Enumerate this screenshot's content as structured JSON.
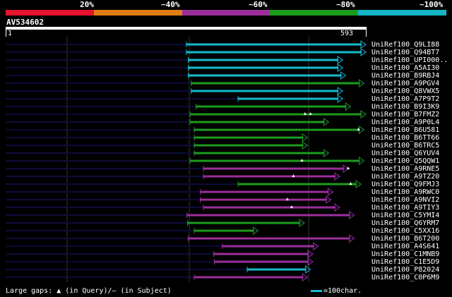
{
  "legend": {
    "segments": [
      {
        "label": "",
        "color": "#e6142d"
      },
      {
        "label": "20%",
        "color": "#e07d14"
      },
      {
        "label": "~40%",
        "color": "#9b2e9b"
      },
      {
        "label": "~60%",
        "color": "#1c9c1c"
      },
      {
        "label": "~80%",
        "color": "#14b4c4"
      },
      {
        "label": "~100%",
        "color": ""
      }
    ]
  },
  "query": {
    "id": "AV534602",
    "start_label": "1",
    "end_label": "593",
    "length": 593
  },
  "hits": [
    {
      "label": "UniRef100_Q9LI88",
      "color": "#14bccc",
      "start": 298,
      "end": 593,
      "gaps": []
    },
    {
      "label": "UniRef100_Q94BT7",
      "color": "#14bccc",
      "start": 298,
      "end": 593,
      "gaps": []
    },
    {
      "label": "UniRef100_UPI000..",
      "color": "#14bccc",
      "start": 301,
      "end": 555,
      "gaps": []
    },
    {
      "label": "UniRef100_A5AI30",
      "color": "#14bccc",
      "start": 301,
      "end": 555,
      "gaps": []
    },
    {
      "label": "UniRef100_B9RBJ4",
      "color": "#14bccc",
      "start": 301,
      "end": 560,
      "gaps": []
    },
    {
      "label": "UniRef100_A9PGV4",
      "color": "#1c9c1c",
      "start": 306,
      "end": 590,
      "gaps": []
    },
    {
      "label": "UniRef100_Q8VWX5",
      "color": "#14bccc",
      "start": 306,
      "end": 555,
      "gaps": []
    },
    {
      "label": "UniRef100_A7P9T2",
      "color": "#14bccc",
      "start": 383,
      "end": 555,
      "gaps": []
    },
    {
      "label": "UniRef100_B9I3K9",
      "color": "#1c9c1c",
      "start": 314,
      "end": 568,
      "gaps": []
    },
    {
      "label": "UniRef100_B7FMZ2",
      "color": "#1c9c1c",
      "start": 304,
      "end": 593,
      "gaps": [
        493,
        502
      ]
    },
    {
      "label": "UniRef100_A9P0L4",
      "color": "#1c9c1c",
      "start": 304,
      "end": 532,
      "gaps": []
    },
    {
      "label": "UniRef100_B6U581",
      "color": "#1c9c1c",
      "start": 311,
      "end": 590,
      "gaps": [
        581
      ]
    },
    {
      "label": "UniRef100_B6TT66",
      "color": "#1c9c1c",
      "start": 311,
      "end": 497,
      "gaps": []
    },
    {
      "label": "UniRef100_B6TRC5",
      "color": "#1c9c1c",
      "start": 311,
      "end": 497,
      "gaps": []
    },
    {
      "label": "UniRef100_Q6YUV4",
      "color": "#1c9c1c",
      "start": 311,
      "end": 532,
      "gaps": []
    },
    {
      "label": "UniRef100_Q5QQW1",
      "color": "#1c9c1c",
      "start": 304,
      "end": 590,
      "gaps": [
        488
      ]
    },
    {
      "label": "UniRef100_A9RNE5",
      "color": "#9b2e9b",
      "start": 326,
      "end": 564,
      "gaps": [
        564
      ]
    },
    {
      "label": "UniRef100_A9TZ20",
      "color": "#9b2e9b",
      "start": 326,
      "end": 550,
      "gaps": [
        474
      ]
    },
    {
      "label": "UniRef100_Q9FMJ3",
      "color": "#1c9c1c",
      "start": 383,
      "end": 585,
      "gaps": [
        568
      ]
    },
    {
      "label": "UniRef100_A9RWC0",
      "color": "#9b2e9b",
      "start": 321,
      "end": 539,
      "gaps": []
    },
    {
      "label": "UniRef100_A9NVI2",
      "color": "#9b2e9b",
      "start": 321,
      "end": 536,
      "gaps": [
        464
      ]
    },
    {
      "label": "UniRef100_A9TIY3",
      "color": "#9b2e9b",
      "start": 326,
      "end": 550,
      "gaps": [
        471
      ]
    },
    {
      "label": "UniRef100_C5YMI4",
      "color": "#9b2e9b",
      "start": 299,
      "end": 574,
      "gaps": []
    },
    {
      "label": "UniRef100_Q6YRM7",
      "color": "#1c9c1c",
      "start": 300,
      "end": 492,
      "gaps": []
    },
    {
      "label": "UniRef100_C5XX16",
      "color": "#1c9c1c",
      "start": 311,
      "end": 416,
      "gaps": []
    },
    {
      "label": "UniRef100_B6T200",
      "color": "#9b2e9b",
      "start": 301,
      "end": 574,
      "gaps": []
    },
    {
      "label": "UniRef100_A4S641",
      "color": "#9b2e9b",
      "start": 357,
      "end": 515,
      "gaps": []
    },
    {
      "label": "UniRef100_C1MNB9",
      "color": "#9b2e9b",
      "start": 343,
      "end": 506,
      "gaps": []
    },
    {
      "label": "UniRef100_C1E5D9",
      "color": "#9b2e9b",
      "start": 344,
      "end": 506,
      "gaps": []
    },
    {
      "label": "UniRef100_P82024",
      "color": "#14bccc",
      "start": 398,
      "end": 502,
      "gaps": []
    },
    {
      "label": "UniRef100_C0P6M9",
      "color": "#9b2e9b",
      "start": 311,
      "end": 497,
      "gaps": []
    }
  ],
  "footer": {
    "gaps_text": "Large gaps: ▲ (in Query)/— (in Subject)",
    "scale_text": "=100char."
  }
}
